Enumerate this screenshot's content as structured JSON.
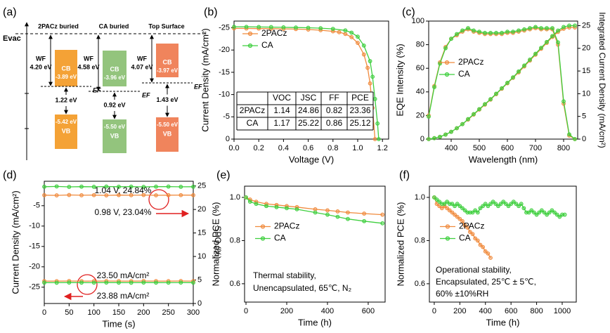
{
  "energy_diagram": {
    "panel_label": "(a)",
    "vacuum_label": "Evac",
    "columns": [
      {
        "title": "2PACz buried",
        "wf_label": "WF",
        "wf": "4.20 eV",
        "cb_label": "CB",
        "cb": "-3.89 eV",
        "ef_label": "EF",
        "gap": "1.22 eV",
        "vb": "-5.42 eV",
        "vb_label": "VB",
        "color": "#f4a236"
      },
      {
        "title": "CA buried",
        "wf_label": "WF",
        "wf": "4.58 eV",
        "cb_label": "CB",
        "cb": "-3.96 eV",
        "ef_label": "EF",
        "gap": "0.92 eV",
        "vb": "-5.50 eV",
        "vb_label": "VB",
        "color": "#93c47d"
      },
      {
        "title": "Top Surface",
        "wf_label": "WF",
        "wf": "4.07 eV",
        "cb_label": "CB",
        "cb": "-3.97 eV",
        "ef_label": "EF",
        "gap": "1.43 eV",
        "vb": "-5.50 eV",
        "vb_label": "VB",
        "color": "#f0845c"
      }
    ]
  },
  "chart_data": [
    {
      "type": "line",
      "panel_label": "(b)",
      "x_label": "Voltage (V)",
      "y_label": "Current Density (mA/cm²)",
      "xlim": [
        0,
        1.25
      ],
      "xticks": [
        {
          "value": 0,
          "label": "0.0"
        },
        0.2,
        0.4,
        0.6,
        0.8,
        {
          "value": 1,
          "label": "1.0"
        },
        1.2
      ],
      "ylim": [
        0,
        -26.5
      ],
      "yticks": [
        0,
        -5,
        -10,
        -15,
        -20,
        -25
      ],
      "legend": "upper left",
      "series": [
        {
          "name": "2PACz",
          "color": "#f08a3c",
          "x": [
            0,
            0.1,
            0.2,
            0.3,
            0.4,
            0.5,
            0.6,
            0.7,
            0.8,
            0.85,
            0.9,
            0.95,
            1.0,
            1.05,
            1.08,
            1.1,
            1.12,
            1.14
          ],
          "values": [
            -24.86,
            -24.84,
            -24.82,
            -24.8,
            -24.75,
            -24.7,
            -24.6,
            -24.45,
            -24.2,
            -24.0,
            -23.6,
            -22.9,
            -21.6,
            -19.0,
            -16.0,
            -12.5,
            -7.0,
            0
          ]
        },
        {
          "name": "CA",
          "color": "#3ecf3e",
          "x": [
            0,
            0.1,
            0.2,
            0.3,
            0.4,
            0.5,
            0.6,
            0.7,
            0.8,
            0.9,
            0.95,
            1.0,
            1.05,
            1.1,
            1.12,
            1.14,
            1.16,
            1.17
          ],
          "values": [
            -25.22,
            -25.2,
            -25.18,
            -25.15,
            -25.1,
            -25.05,
            -25.0,
            -24.9,
            -24.75,
            -24.4,
            -23.9,
            -23.0,
            -21.0,
            -17.5,
            -14,
            -9,
            -3.5,
            0
          ]
        }
      ],
      "table": {
        "columns": [
          "VOC",
          "JSC",
          "FF",
          "PCE"
        ],
        "rows": [
          {
            "label": "2PACz",
            "cells": [
              1.14,
              24.86,
              0.82,
              23.36
            ]
          },
          {
            "label": "CA",
            "cells": [
              1.17,
              25.22,
              0.86,
              25.12
            ]
          }
        ]
      }
    },
    {
      "type": "line",
      "panel_label": "(c)",
      "x_label": "Wavelength (nm)",
      "y_label": "EQE Intensity (%)",
      "y2_label": "Integrated Current Density (mA/cm²)",
      "y2_color": "#e8452f",
      "x": [
        320,
        340,
        360,
        380,
        400,
        420,
        440,
        460,
        480,
        500,
        520,
        540,
        560,
        580,
        600,
        620,
        640,
        660,
        680,
        700,
        720,
        740,
        760,
        780,
        800,
        820,
        840
      ],
      "xlim": [
        320,
        850
      ],
      "xticks": [
        400,
        500,
        600,
        700,
        800
      ],
      "ylim": [
        0,
        100
      ],
      "yticks": [
        0,
        20,
        40,
        60,
        80,
        100
      ],
      "y2lim": [
        0,
        26
      ],
      "y2ticks": [
        0,
        5,
        10,
        15,
        20,
        25
      ],
      "legend": "center left",
      "series": [
        {
          "name": "2PACz",
          "color": "#f08a3c",
          "values": [
            20,
            45,
            65,
            78,
            85,
            88,
            91,
            93,
            91,
            90,
            89,
            89,
            89,
            89,
            90,
            90,
            91,
            92,
            93,
            94,
            93,
            93,
            93,
            80,
            30,
            3,
            0
          ]
        },
        {
          "name": "CA",
          "color": "#3ecf3e",
          "values": [
            19,
            44,
            64,
            77,
            85,
            89,
            92,
            94,
            92,
            91,
            90,
            90,
            90,
            90,
            91,
            91,
            92,
            93,
            94,
            95,
            94,
            94,
            94,
            82,
            32,
            4,
            0
          ]
        },
        {
          "color": "#f08a3c",
          "axis": "y2",
          "values": [
            0,
            0.2,
            0.5,
            1.0,
            1.6,
            2.4,
            3.3,
            4.3,
            5.4,
            6.5,
            7.6,
            8.7,
            9.9,
            11.1,
            12.3,
            13.5,
            14.7,
            16.0,
            17.3,
            18.6,
            19.9,
            21.2,
            22.5,
            23.6,
            24.3,
            24.6,
            24.6
          ]
        },
        {
          "color": "#3ecf3e",
          "axis": "y2",
          "values": [
            0,
            0.2,
            0.5,
            1.0,
            1.6,
            2.4,
            3.3,
            4.4,
            5.5,
            6.6,
            7.7,
            8.8,
            10.0,
            11.2,
            12.4,
            13.6,
            14.9,
            16.2,
            17.5,
            18.8,
            20.1,
            21.4,
            22.7,
            23.9,
            24.7,
            25.0,
            25.0
          ]
        }
      ]
    },
    {
      "type": "line",
      "panel_label": "(d)",
      "x_label": "Time (s)",
      "y_label": "Current Density (mA/cm²)",
      "y2_label": "SPO (%)",
      "y2_color": "#e8452f",
      "x": [
        0,
        25,
        50,
        75,
        100,
        125,
        150,
        175,
        200,
        225,
        250,
        275,
        300
      ],
      "xlim": [
        0,
        300
      ],
      "xticks": [
        0,
        50,
        100,
        150,
        200,
        250,
        300
      ],
      "ylim": [
        -29,
        1
      ],
      "yticks": [
        -5,
        -10,
        -15,
        -20,
        -25
      ],
      "y2lim": [
        0,
        26
      ],
      "y2ticks": [
        0,
        5,
        10,
        15,
        20,
        25
      ],
      "series": [
        {
          "color": "#f08a3c",
          "axis": "y2",
          "values": [
            23.04,
            23.0,
            23.08,
            23.02,
            23.05,
            23.0,
            23.06,
            23.03,
            23.07,
            23.01,
            23.04,
            23.05,
            23.04
          ]
        },
        {
          "color": "#3ecf3e",
          "axis": "y2",
          "values": [
            24.84,
            24.9,
            24.8,
            24.85,
            24.82,
            24.88,
            24.83,
            24.86,
            24.8,
            24.85,
            24.87,
            24.82,
            24.84
          ]
        },
        {
          "color": "#f08a3c",
          "values": [
            -23.5,
            -23.52,
            -23.48,
            -23.5,
            -23.51,
            -23.49,
            -23.5,
            -23.52,
            -23.48,
            -23.5,
            -23.51,
            -23.49,
            -23.5
          ]
        },
        {
          "color": "#3ecf3e",
          "values": [
            -23.88,
            -23.9,
            -23.86,
            -23.88,
            -23.89,
            -23.87,
            -23.88,
            -23.9,
            -23.86,
            -23.88,
            -23.89,
            -23.87,
            -23.88
          ]
        }
      ],
      "annotations": [
        {
          "text": "1.04 V, 24.84%",
          "color": "#3ecf3e"
        },
        {
          "text": "0.98 V, 23.04%",
          "color": "#f08a3c"
        },
        {
          "text": "23.50 mA/cm²",
          "color": "#f08a3c"
        },
        {
          "text": "23.88 mA/cm²",
          "color": "#3ecf3e"
        }
      ]
    },
    {
      "type": "line",
      "panel_label": "(e)",
      "x_label": "Time (h)",
      "y_label": "Normalized PCE (%)",
      "xlim": [
        -7,
        683
      ],
      "xticks": [
        0,
        200,
        400,
        600
      ],
      "ylim": [
        0.515,
        1.052
      ],
      "yticks": [
        0.6,
        0.8,
        {
          "value": 1,
          "label": "1.0"
        }
      ],
      "legend": "center left",
      "series": [
        {
          "name": "2PACz",
          "color": "#f08a3c",
          "x": [
            0,
            20,
            50,
            100,
            150,
            200,
            250,
            340,
            400,
            450,
            500,
            580,
            670
          ],
          "values": [
            1.0,
            0.99,
            0.98,
            0.97,
            0.965,
            0.96,
            0.955,
            0.945,
            0.94,
            0.935,
            0.93,
            0.925,
            0.92
          ]
        },
        {
          "name": "CA",
          "color": "#3ecf3e",
          "x": [
            0,
            20,
            50,
            100,
            150,
            200,
            250,
            340,
            400,
            450,
            500,
            580,
            670
          ],
          "values": [
            1.0,
            0.98,
            0.97,
            0.96,
            0.955,
            0.95,
            0.945,
            0.93,
            0.92,
            0.91,
            0.9,
            0.89,
            0.88
          ]
        }
      ],
      "annotations": [
        {
          "text": "Thermal stability,"
        },
        {
          "text": "Unencapsulated, 65℃, N₂"
        }
      ]
    },
    {
      "type": "line",
      "panel_label": "(f)",
      "x_label": "Time (h)",
      "y_label": "Normalized PCE (%)",
      "xlim": [
        -38,
        1110
      ],
      "xticks": [
        0,
        200,
        400,
        600,
        800,
        1000
      ],
      "ylim": [
        0.515,
        1.052
      ],
      "yticks": [
        0.6,
        0.8,
        {
          "value": 1,
          "label": "1.0"
        }
      ],
      "legend": "center left",
      "series": [
        {
          "name": "2PACz",
          "color": "#f08a3c",
          "x": [
            0,
            20,
            40,
            60,
            80,
            100,
            120,
            140,
            160,
            180,
            200,
            220,
            240,
            260,
            280,
            300,
            320,
            340,
            360,
            380,
            400,
            420,
            440
          ],
          "values": [
            1.0,
            0.97,
            0.96,
            0.95,
            0.96,
            0.95,
            0.94,
            0.93,
            0.92,
            0.91,
            0.9,
            0.89,
            0.87,
            0.86,
            0.84,
            0.83,
            0.81,
            0.8,
            0.78,
            0.77,
            0.75,
            0.74,
            0.72
          ]
        },
        {
          "name": "CA",
          "color": "#3ecf3e",
          "x": [
            0,
            20,
            40,
            60,
            80,
            100,
            120,
            140,
            160,
            180,
            200,
            220,
            240,
            260,
            280,
            300,
            320,
            340,
            360,
            380,
            400,
            420,
            440,
            460,
            480,
            500,
            520,
            540,
            560,
            580,
            600,
            620,
            640,
            660,
            680,
            700,
            720,
            740,
            760,
            780,
            800,
            820,
            840,
            860,
            880,
            900,
            920,
            940,
            960,
            980,
            1000,
            1020
          ],
          "values": [
            1.0,
            0.99,
            0.98,
            0.97,
            0.97,
            0.98,
            0.97,
            0.97,
            0.96,
            0.97,
            0.96,
            0.95,
            0.94,
            0.93,
            0.93,
            0.93,
            0.94,
            0.93,
            0.95,
            0.96,
            0.97,
            0.96,
            0.97,
            0.98,
            0.97,
            0.96,
            0.97,
            0.98,
            0.97,
            0.96,
            0.97,
            0.98,
            0.97,
            0.96,
            0.97,
            0.95,
            0.93,
            0.93,
            0.94,
            0.93,
            0.92,
            0.93,
            0.94,
            0.93,
            0.92,
            0.93,
            0.94,
            0.93,
            0.92,
            0.91,
            0.92,
            0.92
          ]
        }
      ],
      "annotations": [
        {
          "text": "Operational stability,"
        },
        {
          "text": "Encapsulated, 25℃ ± 5℃,"
        },
        {
          "text": "60% ±10%RH"
        }
      ]
    }
  ]
}
